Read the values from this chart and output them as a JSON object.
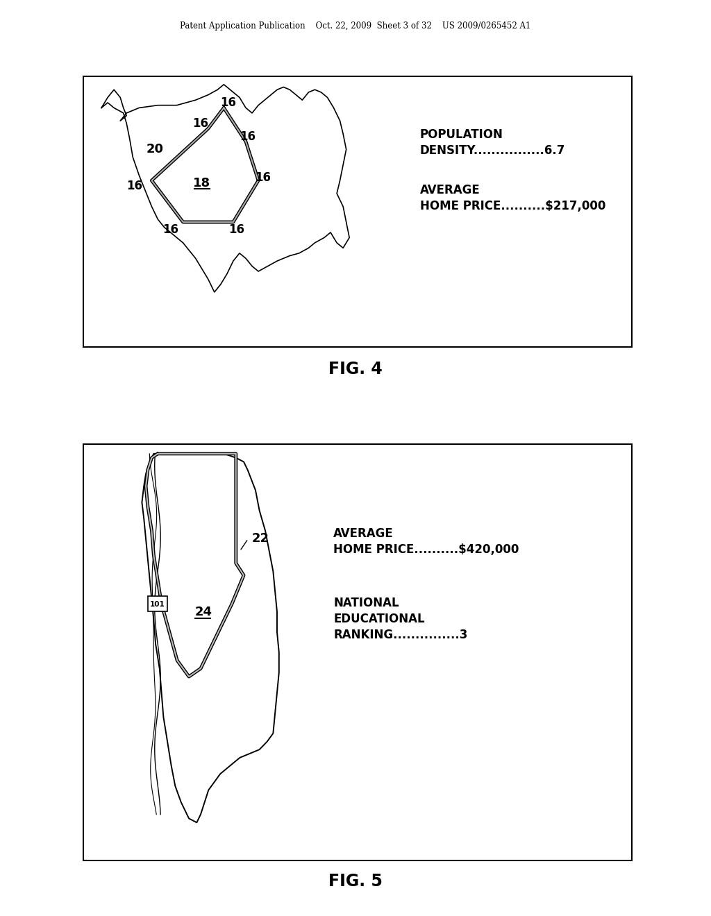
{
  "bg_color": "#ffffff",
  "header_text": "Patent Application Publication    Oct. 22, 2009  Sheet 3 of 32    US 2009/0265452 A1",
  "fig4_label": "FIG. 4",
  "fig5_label": "FIG. 5",
  "fig4_info1_line1": "POPULATION",
  "fig4_info1_line2": "DENSITY................6.7",
  "fig4_info2_line1": "AVERAGE",
  "fig4_info2_line2": "HOME PRICE..........$217,000",
  "fig5_info1_line1": "AVERAGE",
  "fig5_info1_line2": "HOME PRICE..........$420,000",
  "fig5_info2_line1": "NATIONAL",
  "fig5_info2_line2": "EDUCATIONAL",
  "fig5_info2_line3": "RANKING...............3",
  "text_color": "#000000"
}
